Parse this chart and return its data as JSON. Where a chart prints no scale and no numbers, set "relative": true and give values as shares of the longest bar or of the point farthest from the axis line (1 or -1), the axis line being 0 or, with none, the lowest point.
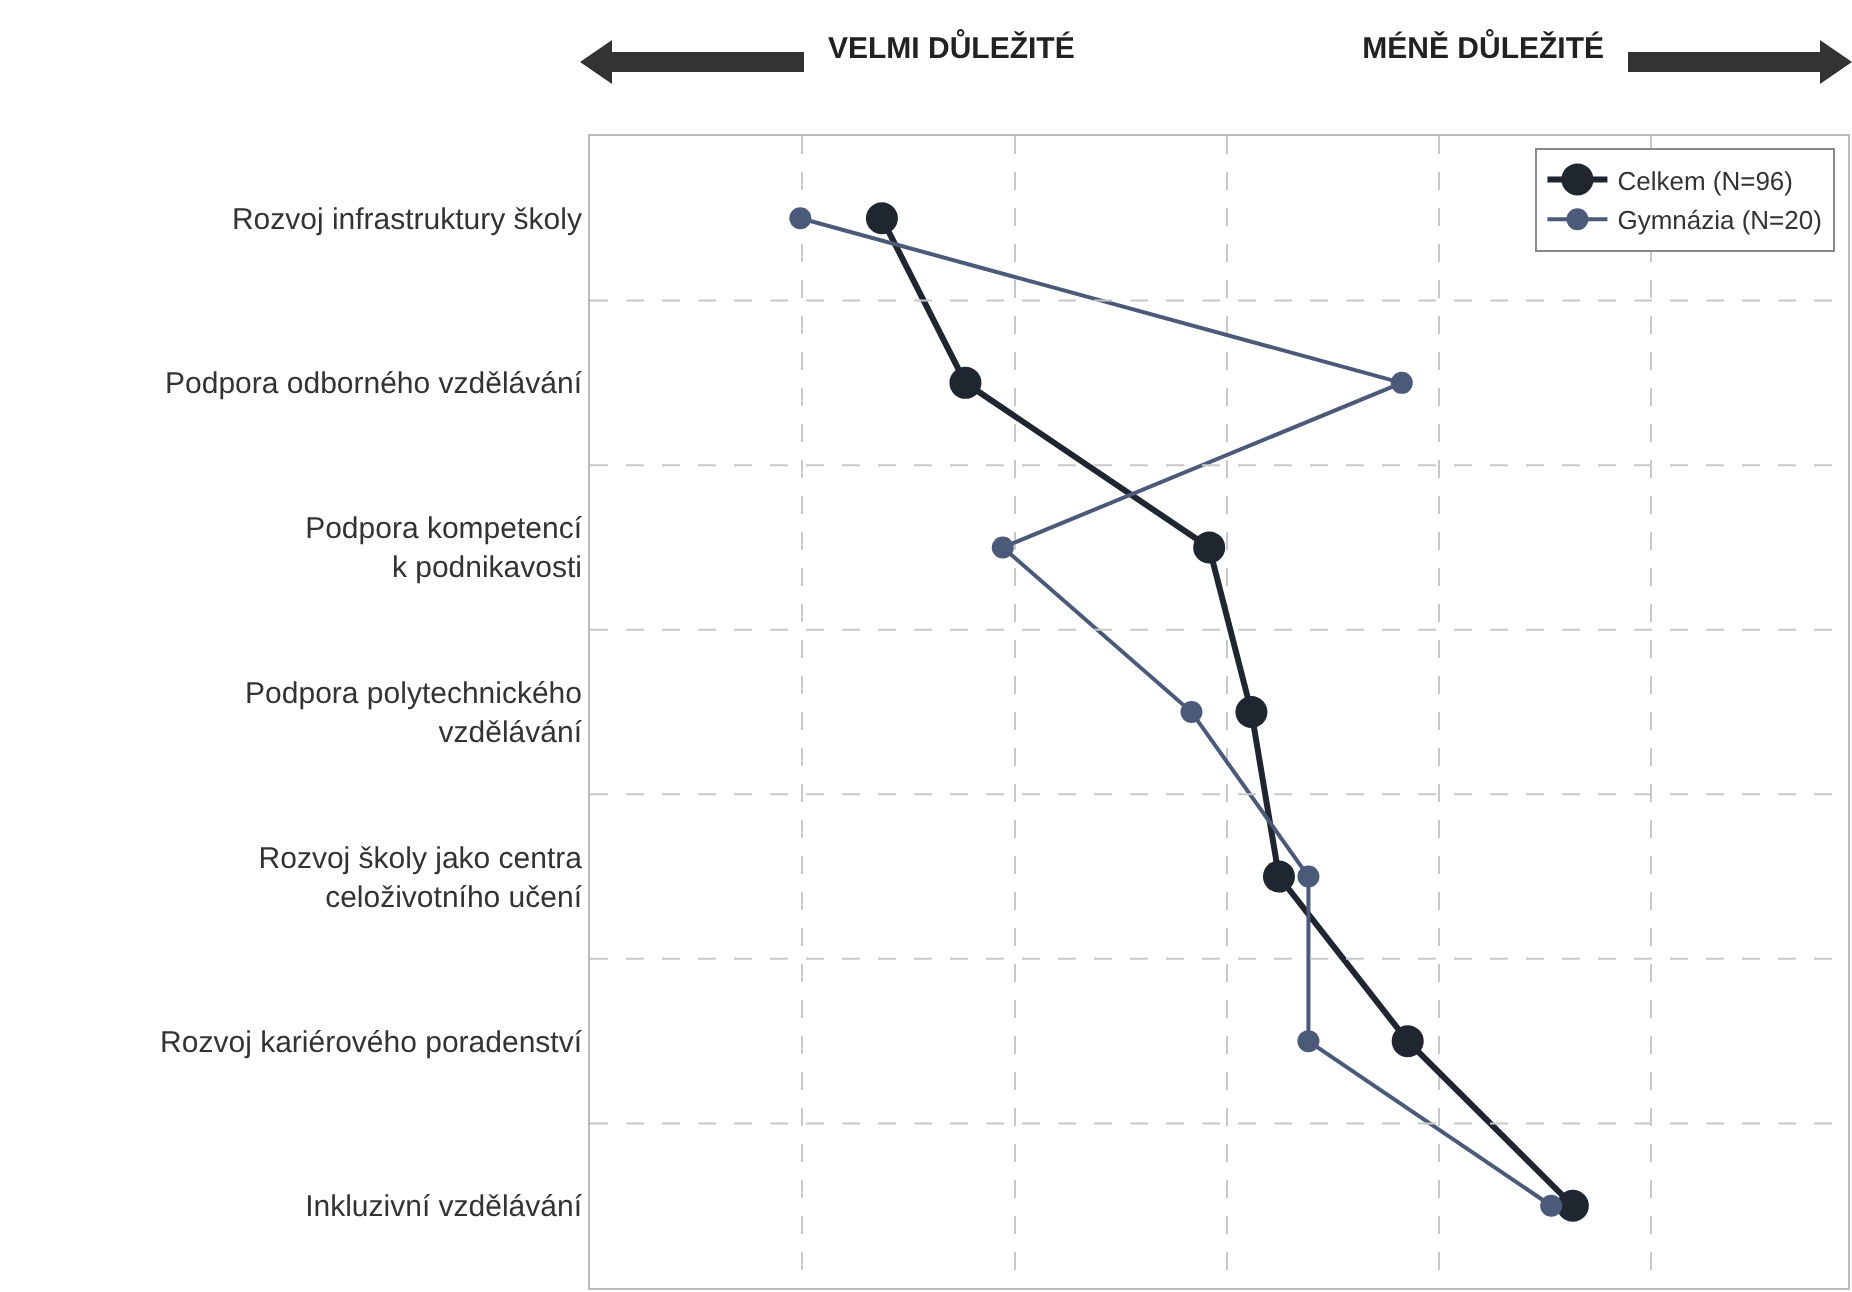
{
  "chart_data": {
    "type": "line",
    "orientation": "horizontal",
    "relative": true,
    "categories": [
      "Rozvoj infrastruktury školy",
      "Podpora odborného vzdělávání",
      "Podpora kompetencí\nk podnikavosti",
      "Podpora polytechnického\nvzdělávání",
      "Rozvoj školy jako centra\nceloživotního učení",
      "Rozvoj kariérového poradenství",
      "Inkluzivní vzdělávání"
    ],
    "series": [
      {
        "name": "Celkem (N=96)",
        "color": "#1f2630",
        "values": [
          0.297,
          0.382,
          0.63,
          0.673,
          0.701,
          0.832,
          1
        ]
      },
      {
        "name": "Gymnázia (N=20)",
        "color": "#4a5a78",
        "values": [
          0.214,
          0.826,
          0.42,
          0.612,
          0.731,
          0.731,
          0.978
        ]
      }
    ],
    "annotations": [
      "VELMI DŮLEŽITÉ",
      "MÉNĚ DŮLEŽITÉ"
    ],
    "grid": true,
    "legend": "top right",
    "marker": "circle",
    "line_style": "solid"
  }
}
